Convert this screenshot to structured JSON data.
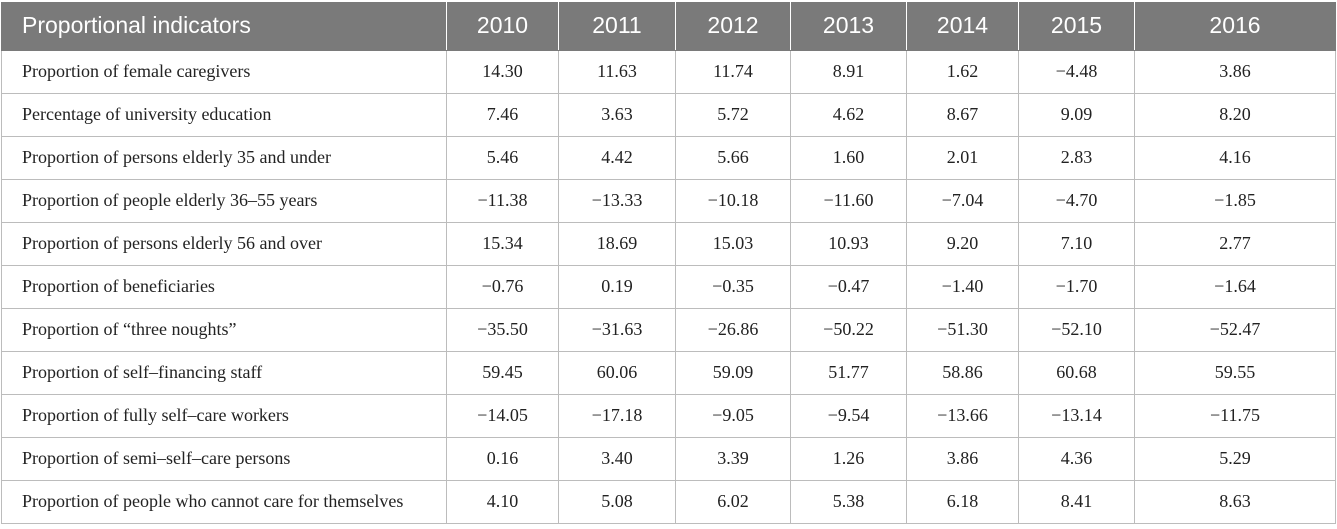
{
  "table": {
    "headers": [
      "Proportional indicators",
      "2010",
      "2011",
      "2012",
      "2013",
      "2014",
      "2015",
      "2016"
    ],
    "rows": [
      {
        "label": "Proportion of female caregivers",
        "values": [
          "14.30",
          "11.63",
          "11.74",
          "8.91",
          "1.62",
          "−4.48",
          "3.86"
        ]
      },
      {
        "label": "Percentage of university education",
        "values": [
          "7.46",
          "3.63",
          "5.72",
          "4.62",
          "8.67",
          "9.09",
          "8.20"
        ]
      },
      {
        "label": "Proportion of persons elderly 35 and under",
        "values": [
          "5.46",
          "4.42",
          "5.66",
          "1.60",
          "2.01",
          "2.83",
          "4.16"
        ]
      },
      {
        "label": "Proportion of people elderly 36–55 years",
        "values": [
          "−11.38",
          "−13.33",
          "−10.18",
          "−11.60",
          "−7.04",
          "−4.70",
          "−1.85"
        ]
      },
      {
        "label": "Proportion of persons elderly 56 and over",
        "values": [
          "15.34",
          "18.69",
          "15.03",
          "10.93",
          "9.20",
          "7.10",
          "2.77"
        ]
      },
      {
        "label": "Proportion of beneficiaries",
        "values": [
          "−0.76",
          "0.19",
          "−0.35",
          "−0.47",
          "−1.40",
          "−1.70",
          "−1.64"
        ]
      },
      {
        "label": "Proportion of “three noughts”",
        "values": [
          "−35.50",
          "−31.63",
          "−26.86",
          "−50.22",
          "−51.30",
          "−52.10",
          "−52.47"
        ]
      },
      {
        "label": "Proportion of self–financing staff",
        "values": [
          "59.45",
          "60.06",
          "59.09",
          "51.77",
          "58.86",
          "60.68",
          "59.55"
        ]
      },
      {
        "label": "Proportion of fully self–care workers",
        "values": [
          "−14.05",
          "−17.18",
          "−9.05",
          "−9.54",
          "−13.66",
          "−13.14",
          "−11.75"
        ]
      },
      {
        "label": "Proportion of semi–self–care persons",
        "values": [
          "0.16",
          "3.40",
          "3.39",
          "1.26",
          "3.86",
          "4.36",
          "5.29"
        ]
      },
      {
        "label": "Proportion of people who cannot care for themselves",
        "values": [
          "4.10",
          "5.08",
          "6.02",
          "5.38",
          "6.18",
          "8.41",
          "8.63"
        ]
      }
    ]
  }
}
